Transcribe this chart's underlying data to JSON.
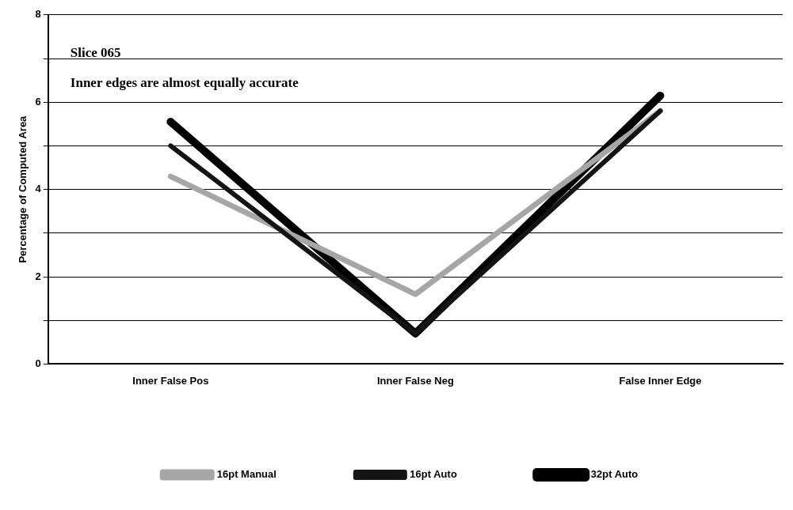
{
  "chart_data": {
    "type": "line",
    "ylabel": "Percentage of Computed Area",
    "annotations": [
      "Slice 065",
      "Inner edges are almost equally accurate"
    ],
    "categories": [
      "Inner False Pos",
      "Inner False Neg",
      "False Inner Edge"
    ],
    "series": [
      {
        "name": "16pt Manual",
        "color": "#a6a6a6",
        "values": [
          4.3,
          1.6,
          5.8
        ]
      },
      {
        "name": "16pt Auto",
        "color": "#141414",
        "values": [
          5.0,
          0.7,
          5.8
        ]
      },
      {
        "name": "32pt Auto",
        "color": "#000000",
        "values": [
          5.55,
          0.7,
          6.15
        ]
      }
    ],
    "ylim": [
      0,
      8
    ],
    "yticks": [
      0,
      {
        "value": 1,
        "label": null
      },
      2,
      {
        "value": 3,
        "label": null
      },
      4,
      {
        "value": 5,
        "label": null
      },
      6,
      {
        "value": 7,
        "label": null
      },
      8
    ],
    "grid": "y",
    "legend": "bottom",
    "marker": "none",
    "line_style": "solid"
  }
}
